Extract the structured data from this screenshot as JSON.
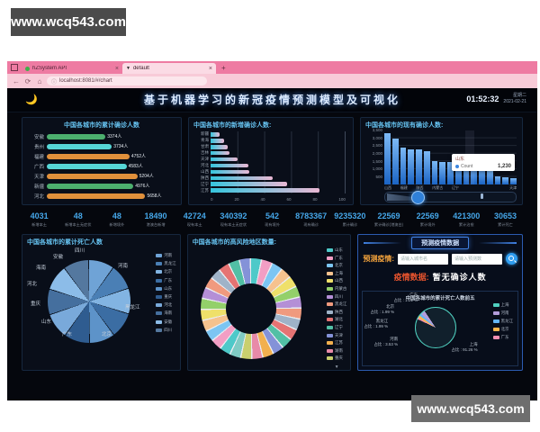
{
  "watermark": {
    "text": "www.wcq543.com"
  },
  "browser": {
    "window_icon": "window-icon",
    "tab1": {
      "title": "hZSystem API",
      "close": "×"
    },
    "tab2": {
      "title": "default",
      "close": "×",
      "favicon": "▼"
    },
    "new_tab": "+",
    "back": "←",
    "refresh": "⟳",
    "home": "⌂",
    "info": "ⓘ",
    "url": "localhost:8081/#/chart"
  },
  "dashboard": {
    "moon": "🌙",
    "title": "基于机器学习的新冠疫情预测模型及可视化",
    "time": "01:52:32",
    "weekday": "星期二",
    "date": "2021-02-21"
  },
  "stats": [
    {
      "value": "4031",
      "label": "新增本土"
    },
    {
      "value": "48",
      "label": "新增本土无症状"
    },
    {
      "value": "48",
      "label": "新增境外"
    },
    {
      "value": "18490",
      "label": "港澳台新增"
    },
    {
      "value": "42724",
      "label": "现有本土"
    },
    {
      "value": "340392",
      "label": "现有本土无症状"
    },
    {
      "value": "542",
      "label": "现有境外"
    },
    {
      "value": "8783367",
      "label": "现有确诊"
    },
    {
      "value": "9235320",
      "label": "累计确诊"
    },
    {
      "value": "22569",
      "label": "累计确诊(港澳台)"
    },
    {
      "value": "22569",
      "label": "累计境外"
    },
    {
      "value": "421300",
      "label": "累计治愈"
    },
    {
      "value": "30653",
      "label": "累计死亡"
    }
  ],
  "chart_data": [
    {
      "id": "cumulative_confirmed",
      "type": "bar",
      "orientation": "horizontal",
      "title": "中国各城市的累计确诊人数",
      "categories": [
        "安徽",
        "贵州",
        "福建",
        "广西",
        "天津",
        "新疆",
        "河北"
      ],
      "values": [
        3374,
        3734,
        4752,
        4583,
        5204,
        4976,
        5658
      ],
      "unit": "人",
      "bar_colors": [
        "#4caf6e",
        "#56d6d6",
        "#e0903b",
        "#56d6d6",
        "#e0903b",
        "#4caf6e",
        "#e0903b"
      ]
    },
    {
      "id": "new_confirmed",
      "type": "bar",
      "orientation": "horizontal",
      "title": "中国各城市的新增确诊人数:",
      "categories": [
        "新疆",
        "青海",
        "甘肃",
        "吉林",
        "天津",
        "河北",
        "山西",
        "陕西",
        "辽宁",
        "江苏"
      ],
      "values": [
        7,
        10,
        13,
        14,
        20,
        28,
        29,
        46,
        57,
        81
      ],
      "xlim": [
        0,
        100
      ],
      "x_ticks": [
        "0",
        "20",
        "40",
        "60",
        "80",
        "100"
      ],
      "bar_gradient": [
        "#35c5dd",
        "#e9b8d4"
      ]
    },
    {
      "id": "existing_confirmed",
      "type": "bar",
      "orientation": "vertical",
      "title": "中国各城市的现有确诊人数:",
      "categories": [
        "山西",
        "",
        "福建",
        "",
        "陕西",
        "",
        "内蒙古",
        "",
        "辽宁",
        "",
        "",
        "",
        "",
        "",
        "",
        "",
        "天津"
      ],
      "values": [
        3300,
        2950,
        2400,
        2300,
        2250,
        2150,
        1500,
        1480,
        1450,
        1400,
        1350,
        1300,
        1230,
        900,
        520,
        480,
        430
      ],
      "ylim": [
        0,
        3500
      ],
      "y_ticks": [
        "3,500",
        "3,000",
        "2,500",
        "2,000",
        "1,500",
        "1,000",
        "500"
      ],
      "bar_color": "#2e86e0",
      "tooltip": {
        "title": "山东",
        "series": "Count",
        "value": "1,230"
      },
      "has_zoom_slider": true
    },
    {
      "id": "cumulative_deaths_pie",
      "type": "pie",
      "title": "中国各城市的累计死亡人数",
      "labels": [
        "四川",
        "安徽",
        "海南",
        "河北",
        "重庆",
        "山东",
        "广东",
        "北京",
        "黑龙江",
        "河南"
      ],
      "values": [
        10,
        10,
        10,
        10,
        10,
        10,
        10,
        10,
        10,
        10
      ],
      "legend": [
        "河南",
        "黑龙江",
        "北京",
        "广东",
        "山东",
        "重庆",
        "河北",
        "海南",
        "安徽",
        "四川"
      ],
      "colors": [
        "#6fa3d6",
        "#4a7fb5",
        "#82b4e2",
        "#3b6da3",
        "#5d93c9",
        "#2f5c90",
        "#79a9da",
        "#456f9e",
        "#8cbce8",
        "#54789f"
      ]
    },
    {
      "id": "high_risk_donut",
      "type": "pie",
      "title": "中国各城市的高风险地区数量:",
      "segments": 28,
      "legend": [
        "山东",
        "广东",
        "北京",
        "上海",
        "山西",
        "内蒙古",
        "四川",
        "黑龙江",
        "陕西",
        "湖北",
        "辽宁",
        "天津",
        "江苏",
        "湖南",
        "重庆"
      ],
      "legend_more": "▼",
      "palette": [
        "#4ec9c9",
        "#f29ec4",
        "#7cc5f2",
        "#f6c28e",
        "#efe06a",
        "#93d06a",
        "#b48fd6",
        "#f09a7e",
        "#9fb3c8",
        "#e57373",
        "#52bfa5",
        "#8492d8",
        "#f2b04e",
        "#e88aa8",
        "#c9cf6e",
        "#80cbc4"
      ]
    },
    {
      "id": "top5_deaths_pie",
      "type": "pie",
      "title": "中国各城市的累计死亡人数前五",
      "label_prefix": "占比 : ",
      "series": [
        {
          "name": "上海",
          "pct": 91.26,
          "color": "#4fd0c0"
        },
        {
          "name": "河南",
          "pct": 3.53,
          "color": "#b39ddb"
        },
        {
          "name": "黑龙江",
          "pct": 1.99,
          "color": "#64b5f6"
        },
        {
          "name": "北京",
          "pct": 1.99,
          "color": "#ffb74d"
        },
        {
          "name": "广东",
          "pct": 1.21,
          "color": "#f48fb1"
        }
      ]
    }
  ],
  "prediction": {
    "header": "预测疫情数据",
    "label": "预测疫情:",
    "input1_placeholder": "请输入城市名",
    "input2_placeholder": "请输入预测数",
    "result_label": "疫情数据:",
    "result_value": "暂无确诊人数"
  }
}
